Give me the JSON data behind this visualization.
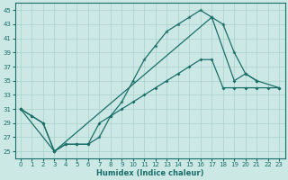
{
  "bg_color": "#cce8e5",
  "grid_color": "#aad0cc",
  "line_color": "#1a6e6a",
  "xlabel": "Humidex (Indice chaleur)",
  "xlim": [
    -0.5,
    23.5
  ],
  "ylim": [
    24,
    46
  ],
  "yticks": [
    25,
    27,
    29,
    31,
    33,
    35,
    37,
    39,
    41,
    43,
    45
  ],
  "xticks": [
    0,
    1,
    2,
    3,
    4,
    5,
    6,
    7,
    8,
    9,
    10,
    11,
    12,
    13,
    14,
    15,
    16,
    17,
    18,
    19,
    20,
    21,
    22,
    23
  ],
  "line1_x": [
    0,
    1,
    2,
    3,
    4,
    5,
    6,
    7,
    8,
    9,
    10,
    11,
    12,
    13,
    14,
    15,
    16,
    17,
    18,
    19,
    20,
    21
  ],
  "line1_y": [
    31,
    30,
    29,
    25,
    26,
    26,
    26,
    27,
    30,
    32,
    35,
    38,
    40,
    42,
    43,
    44,
    45,
    44,
    43,
    39,
    36,
    35
  ],
  "line2_x": [
    0,
    1,
    2,
    3,
    4,
    5,
    6,
    7,
    8,
    9,
    10,
    11,
    12,
    13,
    14,
    15,
    16,
    17,
    18,
    19,
    20,
    21,
    22,
    23
  ],
  "line2_y": [
    31,
    30,
    29,
    25,
    26,
    26,
    26,
    29,
    30,
    31,
    32,
    33,
    34,
    35,
    36,
    37,
    38,
    38,
    34,
    34,
    34,
    34,
    34,
    34
  ],
  "line3_x": [
    0,
    3,
    17,
    19,
    20,
    21,
    23
  ],
  "line3_y": [
    31,
    25,
    44,
    35,
    36,
    35,
    34
  ]
}
